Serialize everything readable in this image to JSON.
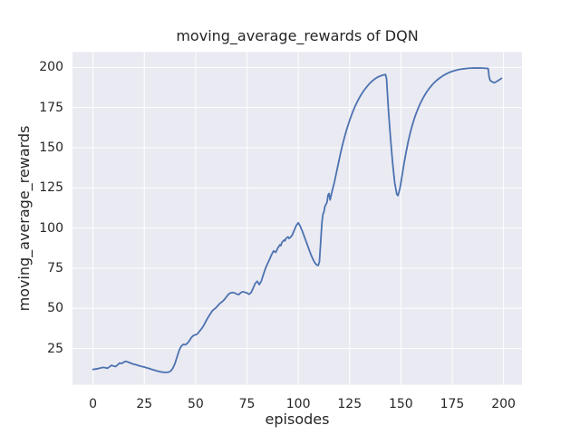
{
  "chart_data": {
    "type": "line",
    "title": "moving_average_rewards of DQN",
    "xlabel": "episodes",
    "ylabel": "moving_average_rewards",
    "xlim": [
      -10,
      209
    ],
    "ylim": [
      2.5,
      209.5
    ],
    "xticks": [
      0,
      25,
      50,
      75,
      100,
      125,
      150,
      175,
      200
    ],
    "yticks": [
      25,
      50,
      75,
      100,
      125,
      150,
      175,
      200
    ],
    "grid": true,
    "legend_position": "none",
    "style": "seaborn-darkgrid",
    "colors": {
      "figure_bg": "#FFFFFF",
      "axes_bg": "#EAEAF2",
      "grid": "#FFFFFF",
      "line": "#4C72B0",
      "text": "#262626"
    },
    "series": [
      {
        "name": "DQN moving_average_rewards",
        "color": "#4C72B0",
        "points": [
          [
            0,
            12.0
          ],
          [
            1,
            12.2
          ],
          [
            2,
            12.4
          ],
          [
            3,
            12.7
          ],
          [
            4,
            13.0
          ],
          [
            5,
            13.3
          ],
          [
            6,
            13.1
          ],
          [
            7,
            12.7
          ],
          [
            8,
            13.6
          ],
          [
            9,
            14.6
          ],
          [
            10,
            14.1
          ],
          [
            11,
            13.8
          ],
          [
            12,
            14.9
          ],
          [
            13,
            16.0
          ],
          [
            14,
            15.7
          ],
          [
            15,
            16.6
          ],
          [
            16,
            17.0
          ],
          [
            17,
            16.6
          ],
          [
            18,
            16.1
          ],
          [
            19,
            15.6
          ],
          [
            20,
            15.2
          ],
          [
            21,
            14.9
          ],
          [
            22,
            14.5
          ],
          [
            23,
            14.1
          ],
          [
            24,
            13.8
          ],
          [
            25,
            13.5
          ],
          [
            26,
            13.1
          ],
          [
            27,
            12.7
          ],
          [
            28,
            12.3
          ],
          [
            29,
            11.9
          ],
          [
            30,
            11.5
          ],
          [
            31,
            11.1
          ],
          [
            32,
            10.8
          ],
          [
            33,
            10.5
          ],
          [
            34,
            10.3
          ],
          [
            35,
            10.2
          ],
          [
            36,
            10.2
          ],
          [
            37,
            10.4
          ],
          [
            38,
            11.2
          ],
          [
            39,
            13.0
          ],
          [
            40,
            16.0
          ],
          [
            41,
            20.0
          ],
          [
            42,
            24.0
          ],
          [
            43,
            26.5
          ],
          [
            44,
            27.6
          ],
          [
            45,
            27.4
          ],
          [
            46,
            28.3
          ],
          [
            47,
            30.0
          ],
          [
            48,
            32.0
          ],
          [
            49,
            33.2
          ],
          [
            50,
            33.5
          ],
          [
            51,
            34.3
          ],
          [
            52,
            36.0
          ],
          [
            53,
            37.5
          ],
          [
            54,
            39.5
          ],
          [
            55,
            42.0
          ],
          [
            56,
            44.3
          ],
          [
            57,
            46.3
          ],
          [
            58,
            48.3
          ],
          [
            59,
            49.5
          ],
          [
            60,
            50.5
          ],
          [
            61,
            52.0
          ],
          [
            62,
            53.3
          ],
          [
            63,
            54.2
          ],
          [
            64,
            55.5
          ],
          [
            65,
            57.2
          ],
          [
            66,
            58.8
          ],
          [
            67,
            59.6
          ],
          [
            68,
            59.9
          ],
          [
            69,
            59.6
          ],
          [
            70,
            58.9
          ],
          [
            71,
            58.6
          ],
          [
            72,
            59.8
          ],
          [
            73,
            60.4
          ],
          [
            74,
            60.0
          ],
          [
            75,
            59.6
          ],
          [
            76,
            58.8
          ],
          [
            77,
            59.8
          ],
          [
            78,
            62.5
          ],
          [
            79,
            65.5
          ],
          [
            80,
            66.9
          ],
          [
            81,
            64.8
          ],
          [
            82,
            67.0
          ],
          [
            83,
            71.0
          ],
          [
            84,
            74.8
          ],
          [
            85,
            77.8
          ],
          [
            86,
            80.5
          ],
          [
            87,
            83.5
          ],
          [
            88,
            85.8
          ],
          [
            89,
            84.8
          ],
          [
            90,
            87.5
          ],
          [
            91,
            89.5
          ],
          [
            91.5,
            89.0
          ],
          [
            92,
            91.0
          ],
          [
            93,
            92.5
          ],
          [
            93.5,
            92.0
          ],
          [
            94,
            93.5
          ],
          [
            95,
            94.5
          ],
          [
            95.5,
            93.5
          ],
          [
            96,
            94.0
          ],
          [
            97,
            95.5
          ],
          [
            98,
            98.5
          ],
          [
            99,
            101.5
          ],
          [
            100,
            103.3
          ],
          [
            101,
            101.0
          ],
          [
            102,
            98.0
          ],
          [
            103,
            94.5
          ],
          [
            104,
            91.0
          ],
          [
            105,
            87.5
          ],
          [
            106,
            84.0
          ],
          [
            107,
            81.0
          ],
          [
            108,
            78.5
          ],
          [
            109,
            77.0
          ],
          [
            109.7,
            76.7
          ],
          [
            110.3,
            79.0
          ],
          [
            111,
            93.0
          ],
          [
            111.5,
            103.0
          ],
          [
            112,
            108.5
          ],
          [
            112.5,
            110.0
          ],
          [
            113,
            113.5
          ],
          [
            114,
            116.0
          ],
          [
            114.5,
            120.5
          ],
          [
            115,
            121.5
          ],
          [
            115.5,
            117.5
          ],
          [
            116.5,
            123.0
          ],
          [
            117.5,
            128.0
          ],
          [
            118.5,
            134.0
          ],
          [
            119.5,
            140.0
          ],
          [
            120.5,
            146.0
          ],
          [
            121.5,
            151.5
          ],
          [
            122.5,
            156.5
          ],
          [
            123.5,
            161.0
          ],
          [
            124.5,
            165.0
          ],
          [
            125.5,
            168.8
          ],
          [
            126.5,
            172.2
          ],
          [
            127.5,
            175.2
          ],
          [
            128.5,
            178.0
          ],
          [
            129.5,
            180.5
          ],
          [
            130.5,
            182.7
          ],
          [
            131.5,
            184.7
          ],
          [
            132.5,
            186.5
          ],
          [
            133.5,
            188.1
          ],
          [
            134.5,
            189.6
          ],
          [
            135.5,
            190.9
          ],
          [
            136.5,
            192.0
          ],
          [
            137.5,
            193.0
          ],
          [
            138.5,
            193.8
          ],
          [
            139.5,
            194.4
          ],
          [
            140.5,
            194.9
          ],
          [
            141.5,
            195.3
          ],
          [
            142.5,
            195.5
          ],
          [
            143,
            193.0
          ],
          [
            144,
            172.0
          ],
          [
            145,
            155.0
          ],
          [
            146,
            140.0
          ],
          [
            147,
            128.0
          ],
          [
            148,
            121.0
          ],
          [
            148.6,
            120.2
          ],
          [
            149.5,
            124.5
          ],
          [
            150.5,
            132.0
          ],
          [
            151.5,
            140.0
          ],
          [
            152.5,
            147.0
          ],
          [
            153.5,
            153.5
          ],
          [
            154.5,
            159.0
          ],
          [
            155.5,
            163.8
          ],
          [
            156.5,
            168.0
          ],
          [
            157.5,
            171.6
          ],
          [
            158.5,
            174.8
          ],
          [
            159.5,
            177.7
          ],
          [
            160.5,
            180.2
          ],
          [
            161.5,
            182.5
          ],
          [
            162.5,
            184.6
          ],
          [
            163.5,
            186.4
          ],
          [
            164.5,
            188.0
          ],
          [
            165.5,
            189.5
          ],
          [
            166.5,
            190.8
          ],
          [
            167.5,
            192.0
          ],
          [
            168.5,
            193.0
          ],
          [
            169.5,
            193.9
          ],
          [
            170.5,
            194.8
          ],
          [
            171.5,
            195.5
          ],
          [
            172.5,
            196.2
          ],
          [
            173.5,
            196.8
          ],
          [
            174.5,
            197.3
          ],
          [
            175.5,
            197.7
          ],
          [
            176.5,
            198.1
          ],
          [
            177.5,
            198.4
          ],
          [
            178.5,
            198.7
          ],
          [
            179.5,
            198.9
          ],
          [
            180.5,
            199.1
          ],
          [
            181.5,
            199.25
          ],
          [
            182.5,
            199.4
          ],
          [
            183.5,
            199.5
          ],
          [
            184.5,
            199.55
          ],
          [
            185.5,
            199.6
          ],
          [
            186.5,
            199.6
          ],
          [
            187.5,
            199.6
          ],
          [
            188.5,
            199.6
          ],
          [
            189.5,
            199.55
          ],
          [
            190.5,
            199.5
          ],
          [
            191.5,
            199.4
          ],
          [
            192.5,
            199.3
          ],
          [
            193,
            194.0
          ],
          [
            193.5,
            191.8
          ],
          [
            194.5,
            191.0
          ],
          [
            195.5,
            190.4
          ],
          [
            196.5,
            191.1
          ],
          [
            197.5,
            191.9
          ],
          [
            198.5,
            192.7
          ],
          [
            199,
            193.2
          ]
        ]
      }
    ]
  }
}
